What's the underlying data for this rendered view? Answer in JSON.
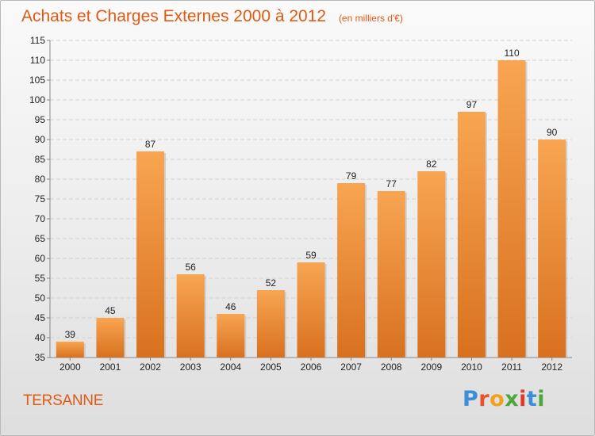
{
  "chart_data": {
    "type": "bar",
    "title": "Achats et Charges Externes 2000 à 2012",
    "unit_note": "(en milliers d'€)",
    "categories": [
      "2000",
      "2001",
      "2002",
      "2003",
      "2004",
      "2005",
      "2006",
      "2007",
      "2008",
      "2009",
      "2010",
      "2011",
      "2012"
    ],
    "values": [
      39,
      45,
      87,
      56,
      46,
      52,
      59,
      79,
      77,
      82,
      97,
      110,
      90
    ],
    "ylim": [
      35,
      115
    ],
    "yticks": [
      35,
      40,
      45,
      50,
      55,
      60,
      65,
      70,
      75,
      80,
      85,
      90,
      95,
      100,
      105,
      110,
      115
    ],
    "grid": true,
    "bar_color": "#f0943a"
  },
  "place_name": "TERSANNE",
  "logo": {
    "text": "Proxiti",
    "letter_colors": [
      "#3a8fd6",
      "#e8522a",
      "#f0a21e",
      "#4aa83a",
      "#e03a2a",
      "#3a8fd6",
      "#4aa83a"
    ]
  }
}
